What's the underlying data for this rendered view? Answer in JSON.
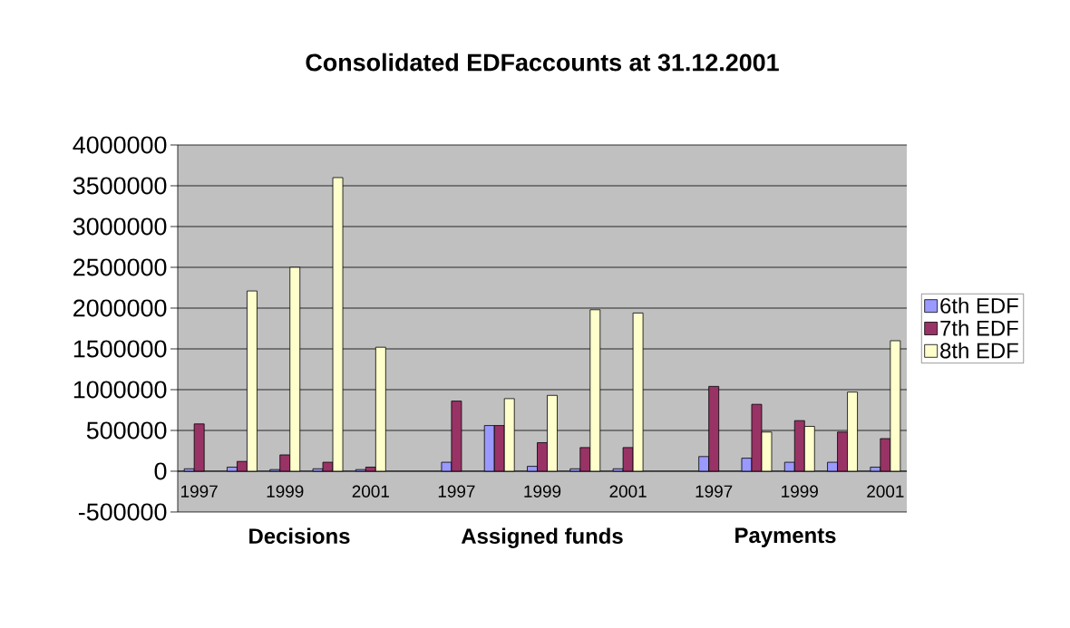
{
  "chart_data": {
    "type": "bar",
    "title": "Consolidated EDFaccounts at 31.12.2001",
    "categories": [
      "1997",
      null,
      "1999",
      null,
      "2001",
      null,
      "1997",
      null,
      "1999",
      null,
      "2001",
      null,
      "1997",
      null,
      "1999",
      null,
      "2001"
    ],
    "series": [
      {
        "name": "6th EDF",
        "color": "#9999ff",
        "values": [
          30000,
          50000,
          20000,
          30000,
          20000,
          null,
          110000,
          560000,
          60000,
          30000,
          30000,
          null,
          180000,
          160000,
          110000,
          110000,
          50000
        ]
      },
      {
        "name": "7th EDF",
        "color": "#993366",
        "values": [
          580000,
          120000,
          200000,
          110000,
          50000,
          null,
          860000,
          560000,
          350000,
          290000,
          290000,
          null,
          1040000,
          820000,
          620000,
          480000,
          400000
        ]
      },
      {
        "name": "8th EDF",
        "color": "#ffffcc",
        "values": [
          null,
          2210000,
          2500000,
          3600000,
          1520000,
          null,
          null,
          890000,
          930000,
          1980000,
          1940000,
          null,
          null,
          480000,
          550000,
          970000,
          1600000
        ]
      }
    ],
    "ylim": [
      -500000,
      4000000
    ],
    "yticks": [
      -500000,
      0,
      500000,
      1000000,
      1500000,
      2000000,
      2500000,
      3000000,
      3500000,
      4000000
    ],
    "grid": "y",
    "legend": "right",
    "annotations": [
      "Decisions",
      "Assigned funds",
      "Payments"
    ]
  }
}
